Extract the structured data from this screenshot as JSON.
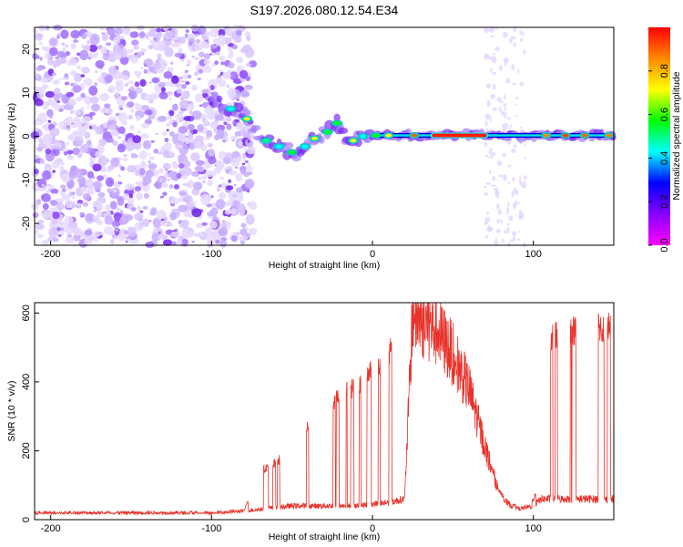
{
  "title": "S197.2026.080.12.54.E34",
  "chart_data": [
    {
      "type": "heatmap",
      "name": "spectrogram",
      "xlabel": "Height of straight line (km)",
      "ylabel": "Frequency (Hz)",
      "xlim": [
        -210,
        150
      ],
      "ylim": [
        -25,
        25
      ],
      "xticks": [
        -200,
        -100,
        0,
        100
      ],
      "yticks": [
        20,
        10,
        0,
        -10,
        -20
      ],
      "colorbar": {
        "label": "Normalized spectral amplitude",
        "range": [
          0,
          1
        ],
        "ticks": [
          0.0,
          0.2,
          0.4,
          0.6,
          0.8
        ],
        "stops": [
          "#ff00ff",
          "#8800ff",
          "#0000ff",
          "#00ffff",
          "#00ff00",
          "#ffff00",
          "#ff8800",
          "#ff0000"
        ]
      },
      "noise_region_km": [
        -210,
        -80
      ],
      "signal_track": {
        "x": [
          -100,
          -92,
          -86,
          -80,
          -76,
          -72,
          -66,
          -60,
          -54,
          -48,
          -44,
          -38,
          -34,
          -28,
          -22,
          -18,
          -12,
          -6,
          0,
          150
        ],
        "freq": [
          8,
          7,
          6,
          5,
          3,
          1,
          -1,
          -2,
          -3,
          -4,
          -3,
          -1,
          0,
          1,
          3,
          0,
          -1,
          0,
          0.2,
          0.2
        ]
      }
    },
    {
      "type": "line",
      "name": "snr",
      "xlabel": "Height of straight line (km)",
      "ylabel": "SNR (10 * v/v)",
      "xlim": [
        -210,
        150
      ],
      "ylim": [
        0,
        630
      ],
      "xticks": [
        -200,
        -100,
        0,
        100
      ],
      "yticks": [
        0,
        200,
        400,
        600
      ],
      "color": "#e8322a",
      "envelope": {
        "x": [
          -210,
          -100,
          -80,
          -70,
          -60,
          -50,
          -40,
          -30,
          -20,
          -10,
          0,
          10,
          20,
          25,
          30,
          40,
          50,
          60,
          70,
          80,
          90,
          100,
          105,
          110,
          120,
          130,
          140,
          150
        ],
        "peak": [
          20,
          20,
          25,
          150,
          180,
          220,
          290,
          340,
          390,
          420,
          470,
          520,
          590,
          610,
          600,
          560,
          500,
          400,
          220,
          80,
          40,
          60,
          150,
          560,
          600,
          590,
          600,
          610
        ],
        "floor": [
          20,
          20,
          25,
          30,
          35,
          40,
          40,
          40,
          40,
          40,
          45,
          50,
          60,
          600,
          580,
          550,
          480,
          380,
          210,
          60,
          30,
          40,
          60,
          60,
          60,
          60,
          60,
          60
        ]
      }
    }
  ]
}
